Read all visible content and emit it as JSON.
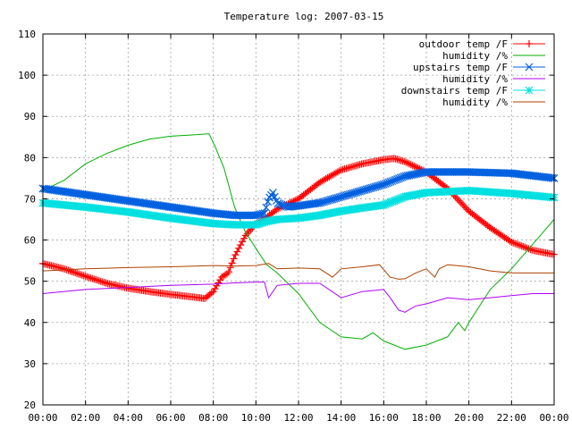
{
  "chart_data": {
    "type": "line",
    "title": "Temperature log: 2007-03-15",
    "xlabel": "",
    "ylabel": "",
    "xlim": [
      0,
      24
    ],
    "ylim": [
      20,
      110
    ],
    "grid": true,
    "legend_position": "top-right",
    "x_ticks": [
      0,
      2,
      4,
      6,
      8,
      10,
      12,
      14,
      16,
      18,
      20,
      22,
      24
    ],
    "x_tick_labels": [
      "00:00",
      "02:00",
      "04:00",
      "06:00",
      "08:00",
      "10:00",
      "12:00",
      "14:00",
      "16:00",
      "18:00",
      "20:00",
      "22:00",
      "00:00"
    ],
    "y_ticks": [
      20,
      30,
      40,
      50,
      60,
      70,
      80,
      90,
      100,
      110
    ],
    "y_tick_labels": [
      "20",
      "30",
      "40",
      "50",
      "60",
      "70",
      "80",
      "90",
      "100",
      "110"
    ],
    "series": [
      {
        "name": "outdoor temp /F",
        "color": "#ff0000",
        "marker": "plus",
        "points": [
          [
            0,
            54.3
          ],
          [
            1,
            53
          ],
          [
            2,
            51.2
          ],
          [
            3,
            49.5
          ],
          [
            4,
            48.3
          ],
          [
            5,
            47.5
          ],
          [
            6,
            46.8
          ],
          [
            7,
            46.2
          ],
          [
            7.6,
            45.8
          ],
          [
            8,
            47.5
          ],
          [
            8.4,
            51
          ],
          [
            8.7,
            52
          ],
          [
            9,
            56
          ],
          [
            9.5,
            61
          ],
          [
            10,
            64
          ],
          [
            10.5,
            65.5
          ],
          [
            11,
            67.5
          ],
          [
            12,
            70
          ],
          [
            13,
            74
          ],
          [
            14,
            77
          ],
          [
            15,
            78.5
          ],
          [
            16,
            79.5
          ],
          [
            16.5,
            79.8
          ],
          [
            17,
            79
          ],
          [
            18,
            76.5
          ],
          [
            19,
            72.5
          ],
          [
            20,
            67
          ],
          [
            21,
            63
          ],
          [
            22,
            59.5
          ],
          [
            23,
            57.5
          ],
          [
            24,
            56.5
          ]
        ]
      },
      {
        "name": "humidity /%",
        "color": "#00b000",
        "marker": "none",
        "points": [
          [
            0,
            72
          ],
          [
            1,
            74.5
          ],
          [
            2,
            78.5
          ],
          [
            3,
            81
          ],
          [
            4,
            83
          ],
          [
            5,
            84.5
          ],
          [
            6,
            85.2
          ],
          [
            7,
            85.5
          ],
          [
            7.8,
            85.8
          ],
          [
            8.1,
            82.5
          ],
          [
            8.5,
            77.5
          ],
          [
            9,
            68
          ],
          [
            9.5,
            62
          ],
          [
            10,
            58
          ],
          [
            10.5,
            54
          ],
          [
            11,
            52
          ],
          [
            12,
            47
          ],
          [
            13,
            40
          ],
          [
            14,
            36.5
          ],
          [
            15,
            36
          ],
          [
            15.5,
            37.5
          ],
          [
            16,
            35.5
          ],
          [
            17,
            33.5
          ],
          [
            18,
            34.5
          ],
          [
            19,
            36.5
          ],
          [
            19.5,
            40
          ],
          [
            19.8,
            38
          ],
          [
            20,
            40
          ],
          [
            21,
            48
          ],
          [
            22,
            53
          ],
          [
            23,
            59
          ],
          [
            24,
            65
          ]
        ]
      },
      {
        "name": "upstairs temp /F",
        "color": "#0060e0",
        "marker": "x",
        "points": [
          [
            0,
            72.5
          ],
          [
            2,
            71
          ],
          [
            4,
            69.5
          ],
          [
            6,
            68
          ],
          [
            8,
            66.5
          ],
          [
            9,
            66
          ],
          [
            10,
            66
          ],
          [
            10.4,
            66.5
          ],
          [
            10.6,
            70
          ],
          [
            10.8,
            71.5
          ],
          [
            11,
            69
          ],
          [
            11.5,
            68
          ],
          [
            12,
            68.3
          ],
          [
            13,
            69
          ],
          [
            14,
            70.5
          ],
          [
            15,
            72
          ],
          [
            16,
            73.5
          ],
          [
            17,
            75.5
          ],
          [
            18,
            76.5
          ],
          [
            20,
            76.5
          ],
          [
            22,
            76.2
          ],
          [
            24,
            75
          ]
        ]
      },
      {
        "name": "humidity /%",
        "color": "#b000ff",
        "marker": "none",
        "points": [
          [
            0,
            47
          ],
          [
            2,
            48
          ],
          [
            4,
            48.5
          ],
          [
            6,
            49
          ],
          [
            8,
            49.3
          ],
          [
            9,
            49.6
          ],
          [
            10,
            49.8
          ],
          [
            10.4,
            49.8
          ],
          [
            10.6,
            46
          ],
          [
            11,
            49
          ],
          [
            12,
            49.5
          ],
          [
            13,
            49.5
          ],
          [
            14,
            46
          ],
          [
            15,
            47.5
          ],
          [
            16,
            48
          ],
          [
            16.3,
            46
          ],
          [
            16.7,
            43
          ],
          [
            17,
            42.5
          ],
          [
            17.5,
            44
          ],
          [
            18,
            44.5
          ],
          [
            19,
            46
          ],
          [
            20,
            45.5
          ],
          [
            21,
            46
          ],
          [
            22,
            46.5
          ],
          [
            23,
            47
          ],
          [
            24,
            47
          ]
        ]
      },
      {
        "name": "downstairs temp /F",
        "color": "#00e0e0",
        "marker": "star",
        "points": [
          [
            0,
            69
          ],
          [
            2,
            68
          ],
          [
            4,
            66.8
          ],
          [
            6,
            65.3
          ],
          [
            8,
            64
          ],
          [
            9,
            63.7
          ],
          [
            10,
            63.7
          ],
          [
            10.5,
            64.5
          ],
          [
            11,
            65
          ],
          [
            12,
            65.3
          ],
          [
            13,
            66
          ],
          [
            14,
            67
          ],
          [
            15,
            67.8
          ],
          [
            16,
            68.5
          ],
          [
            17,
            70.5
          ],
          [
            18,
            71.5
          ],
          [
            20,
            72
          ],
          [
            22,
            71.3
          ],
          [
            24,
            70.3
          ]
        ]
      },
      {
        "name": "humidity /%",
        "color": "#b04000",
        "marker": "none",
        "points": [
          [
            0,
            52.5
          ],
          [
            2,
            53
          ],
          [
            4,
            53.3
          ],
          [
            6,
            53.5
          ],
          [
            8,
            53.8
          ],
          [
            9,
            53.7
          ],
          [
            10,
            53.8
          ],
          [
            10.6,
            54.3
          ],
          [
            11,
            53
          ],
          [
            12,
            53.2
          ],
          [
            13,
            53
          ],
          [
            13.6,
            51
          ],
          [
            14,
            53
          ],
          [
            15,
            53.5
          ],
          [
            15.8,
            54
          ],
          [
            16.3,
            51
          ],
          [
            16.7,
            50.5
          ],
          [
            17,
            50.6
          ],
          [
            17.5,
            52
          ],
          [
            18,
            53
          ],
          [
            18.4,
            51
          ],
          [
            18.6,
            53
          ],
          [
            19,
            54
          ],
          [
            20,
            53.5
          ],
          [
            21,
            52.5
          ],
          [
            22,
            52
          ],
          [
            23,
            52
          ],
          [
            24,
            52
          ]
        ]
      }
    ]
  }
}
